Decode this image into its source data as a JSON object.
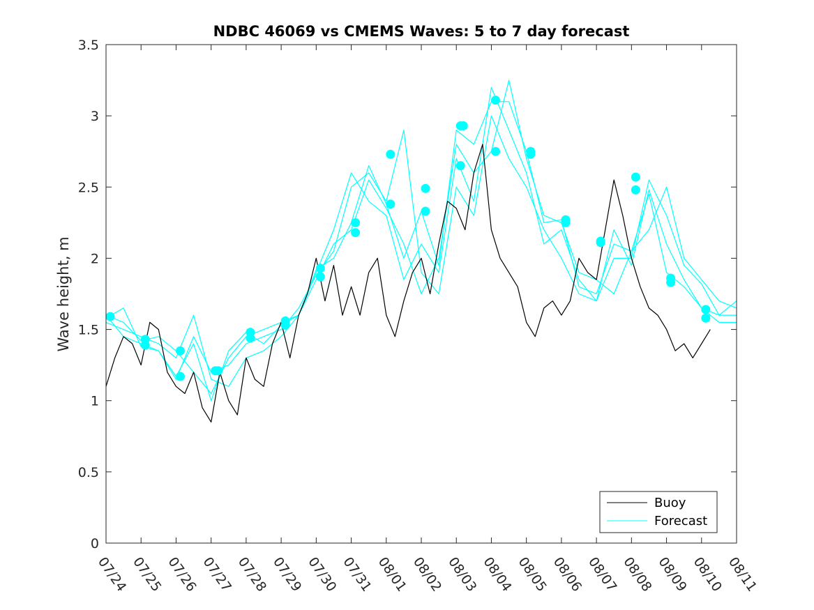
{
  "chart_data": {
    "type": "line",
    "title": "NDBC 46069 vs CMEMS Waves: 5 to 7 day forecast",
    "xlabel": "",
    "ylabel": "Wave height, m",
    "xlim": [
      0,
      18
    ],
    "ylim": [
      0,
      3.5
    ],
    "x_tick_labels": [
      "07/24",
      "07/25",
      "07/26",
      "07/27",
      "07/28",
      "07/29",
      "07/30",
      "07/31",
      "08/01",
      "08/02",
      "08/03",
      "08/04",
      "08/05",
      "08/06",
      "08/07",
      "08/08",
      "08/09",
      "08/10",
      "08/11"
    ],
    "y_ticks": [
      0,
      0.5,
      1,
      1.5,
      2,
      2.5,
      3,
      3.5
    ],
    "y_tick_labels": [
      "0",
      "0.5",
      "1",
      "1.5",
      "2",
      "2.5",
      "3",
      "3.5"
    ],
    "grid": false,
    "legend": {
      "position": "bottom-right",
      "entries": [
        "Buoy",
        "Forecast"
      ]
    },
    "colors": {
      "buoy": "#000000",
      "forecast": "#00ffff"
    },
    "series": [
      {
        "name": "Buoy",
        "color": "#000000",
        "x": [
          0,
          0.25,
          0.5,
          0.75,
          1,
          1.25,
          1.5,
          1.75,
          2,
          2.25,
          2.5,
          2.75,
          3,
          3.25,
          3.5,
          3.75,
          4,
          4.25,
          4.5,
          4.75,
          5,
          5.25,
          5.5,
          5.75,
          6,
          6.25,
          6.5,
          6.75,
          7,
          7.25,
          7.5,
          7.75,
          8,
          8.25,
          8.5,
          8.75,
          9,
          9.25,
          9.5,
          9.75,
          10,
          10.25,
          10.5,
          10.75,
          11,
          11.25,
          11.5,
          11.75,
          12,
          12.25,
          12.5,
          12.75,
          13,
          13.25,
          13.5,
          13.75,
          14,
          14.25,
          14.5,
          14.75,
          15,
          15.25,
          15.5,
          15.75,
          16,
          16.25,
          16.5,
          16.75,
          17,
          17.25
        ],
        "y": [
          1.1,
          1.3,
          1.45,
          1.4,
          1.25,
          1.55,
          1.5,
          1.2,
          1.1,
          1.05,
          1.2,
          0.95,
          0.85,
          1.2,
          1.0,
          0.9,
          1.3,
          1.15,
          1.1,
          1.4,
          1.55,
          1.3,
          1.6,
          1.75,
          2.0,
          1.7,
          1.95,
          1.6,
          1.8,
          1.6,
          1.9,
          2.0,
          1.6,
          1.45,
          1.7,
          1.9,
          2.0,
          1.75,
          2.1,
          2.4,
          2.35,
          2.2,
          2.6,
          2.8,
          2.2,
          2.0,
          1.9,
          1.8,
          1.55,
          1.45,
          1.65,
          1.7,
          1.6,
          1.7,
          2.0,
          1.9,
          1.85,
          2.2,
          2.55,
          2.3,
          2.0,
          1.8,
          1.65,
          1.6,
          1.5,
          1.35,
          1.4,
          1.3,
          1.4,
          1.5
        ]
      },
      {
        "name": "Forecast",
        "color": "#00ffff",
        "x": [
          0,
          0.5,
          1,
          1.5,
          2,
          2.5,
          3,
          3.5,
          4,
          4.5,
          5,
          5.5,
          6,
          6.5,
          7,
          7.5,
          8,
          8.5,
          9,
          9.5,
          10,
          10.5,
          11,
          11.5,
          12,
          12.5,
          13,
          13.5,
          14,
          14.5,
          15,
          15.5,
          16,
          16.5,
          17,
          17.5,
          18
        ],
        "y": [
          1.6,
          1.55,
          1.42,
          1.45,
          1.35,
          1.2,
          1.05,
          1.3,
          1.45,
          1.5,
          1.55,
          1.6,
          1.9,
          2.2,
          2.6,
          2.4,
          2.3,
          1.85,
          2.1,
          1.9,
          2.7,
          2.4,
          3.2,
          2.9,
          2.6,
          2.1,
          2.2,
          1.85,
          1.7,
          2.0,
          2.0,
          2.55,
          2.3,
          1.95,
          1.82,
          1.6,
          1.6
        ]
      },
      {
        "x": [
          0,
          0.5,
          1,
          1.5,
          2,
          2.5,
          3,
          3.5,
          4,
          4.5,
          5,
          5.5,
          6,
          6.5,
          7,
          7.5,
          8,
          8.5,
          9,
          9.5,
          10,
          10.5,
          11,
          11.5,
          12,
          12.5,
          13,
          13.5,
          14,
          14.5,
          15,
          15.5,
          16,
          16.5,
          17,
          17.5,
          18
        ],
        "y": [
          1.58,
          1.65,
          1.38,
          1.35,
          1.15,
          1.45,
          1.2,
          1.25,
          1.4,
          1.45,
          1.5,
          1.65,
          1.88,
          2.05,
          2.5,
          2.6,
          2.4,
          2.9,
          1.9,
          1.75,
          2.5,
          2.3,
          3.0,
          2.7,
          2.5,
          2.2,
          2.0,
          1.75,
          1.7,
          2.2,
          1.95,
          2.48,
          2.1,
          1.85,
          1.65,
          1.55,
          1.55
        ]
      },
      {
        "x": [
          0,
          0.5,
          1,
          1.5,
          2,
          2.5,
          3,
          3.5,
          4,
          4.5,
          5,
          5.5,
          6,
          6.5,
          7,
          7.5,
          8,
          8.5,
          9,
          9.5,
          10,
          10.5,
          11,
          11.5,
          12,
          12.5,
          13,
          13.5,
          14,
          14.5,
          15,
          15.5,
          16,
          16.5,
          17,
          17.5,
          18
        ],
        "y": [
          1.55,
          1.5,
          1.45,
          1.4,
          1.3,
          1.6,
          1.15,
          1.1,
          1.3,
          1.35,
          1.45,
          1.6,
          1.85,
          2.1,
          2.2,
          2.55,
          2.35,
          2.1,
          1.75,
          2.0,
          2.8,
          2.6,
          2.75,
          3.25,
          2.7,
          2.3,
          2.25,
          1.9,
          1.85,
          1.75,
          2.05,
          2.2,
          2.5,
          2.0,
          1.85,
          1.7,
          1.65
        ]
      },
      {
        "x": [
          0,
          0.5,
          1,
          1.5,
          2,
          2.5,
          3,
          3.5,
          4,
          4.5,
          5,
          5.5,
          6,
          6.5,
          7,
          7.5,
          8,
          8.5,
          9,
          9.5,
          10,
          10.5,
          11,
          11.5,
          12,
          12.5,
          13,
          13.5,
          14,
          14.5,
          15,
          15.5,
          16,
          16.5,
          17,
          17.5,
          18
        ],
        "y": [
          1.6,
          1.45,
          1.4,
          1.35,
          1.17,
          1.4,
          1.0,
          1.35,
          1.48,
          1.4,
          1.53,
          1.6,
          1.92,
          2.0,
          2.25,
          2.65,
          2.38,
          2.0,
          2.33,
          1.95,
          2.9,
          2.8,
          3.1,
          3.1,
          2.75,
          2.25,
          2.27,
          1.8,
          1.75,
          2.1,
          2.05,
          2.45,
          1.9,
          1.8,
          1.65,
          1.6,
          1.7
        ]
      }
    ],
    "markers": [
      {
        "x": 0.12,
        "y": 1.59
      },
      {
        "x": 1.12,
        "y": 1.43
      },
      {
        "x": 1.12,
        "y": 1.39
      },
      {
        "x": 2.12,
        "y": 1.35
      },
      {
        "x": 2.12,
        "y": 1.17
      },
      {
        "x": 3.12,
        "y": 1.21
      },
      {
        "x": 3.2,
        "y": 1.21
      },
      {
        "x": 4.12,
        "y": 1.48
      },
      {
        "x": 4.12,
        "y": 1.44
      },
      {
        "x": 5.12,
        "y": 1.56
      },
      {
        "x": 5.12,
        "y": 1.53
      },
      {
        "x": 6.12,
        "y": 1.93
      },
      {
        "x": 6.12,
        "y": 1.87
      },
      {
        "x": 7.12,
        "y": 2.25
      },
      {
        "x": 7.12,
        "y": 2.18
      },
      {
        "x": 8.12,
        "y": 2.73
      },
      {
        "x": 8.12,
        "y": 2.38
      },
      {
        "x": 9.12,
        "y": 2.49
      },
      {
        "x": 9.12,
        "y": 2.33
      },
      {
        "x": 10.12,
        "y": 2.93
      },
      {
        "x": 10.2,
        "y": 2.93
      },
      {
        "x": 10.12,
        "y": 2.65
      },
      {
        "x": 11.12,
        "y": 3.11
      },
      {
        "x": 11.12,
        "y": 2.75
      },
      {
        "x": 12.12,
        "y": 2.75
      },
      {
        "x": 12.12,
        "y": 2.73
      },
      {
        "x": 13.12,
        "y": 2.27
      },
      {
        "x": 13.12,
        "y": 2.25
      },
      {
        "x": 14.12,
        "y": 2.12
      },
      {
        "x": 14.12,
        "y": 2.11
      },
      {
        "x": 15.12,
        "y": 2.57
      },
      {
        "x": 15.12,
        "y": 2.48
      },
      {
        "x": 16.12,
        "y": 1.86
      },
      {
        "x": 16.12,
        "y": 1.83
      },
      {
        "x": 17.12,
        "y": 1.64
      },
      {
        "x": 17.12,
        "y": 1.58
      }
    ]
  }
}
